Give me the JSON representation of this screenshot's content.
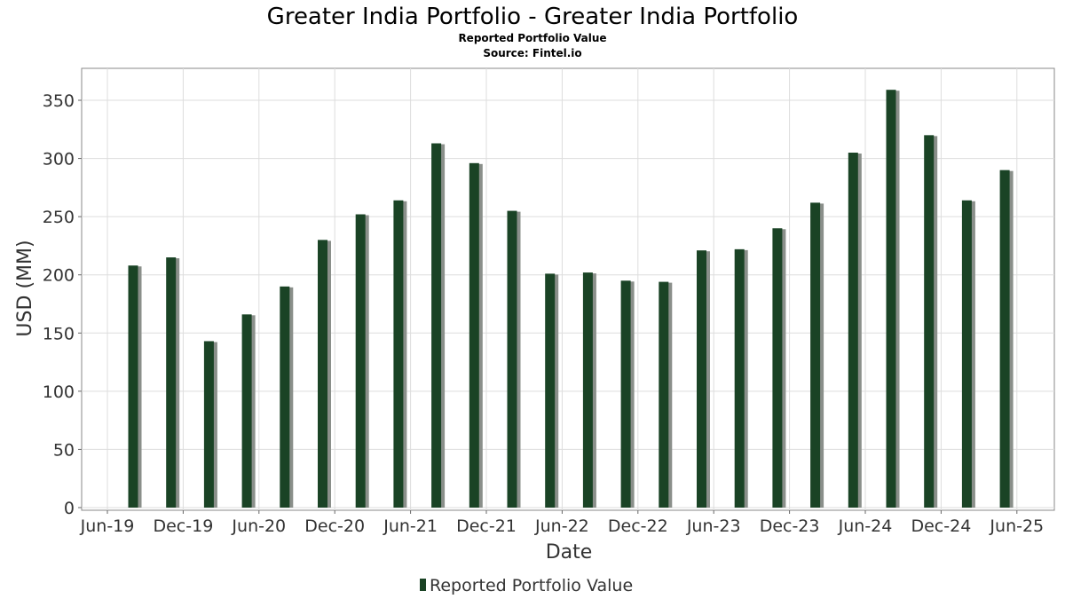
{
  "chart_data": {
    "type": "bar",
    "title": "Greater India Portfolio - Greater India Portfolio",
    "subtitle": "Reported Portfolio Value",
    "source": "Source: Fintel.io",
    "xlabel": "Date",
    "ylabel": "USD (MM)",
    "ylim": [
      0,
      370
    ],
    "yticks": [
      0,
      50,
      100,
      150,
      200,
      250,
      300,
      350
    ],
    "x_tick_labels": [
      "Jun-19",
      "Dec-19",
      "Jun-20",
      "Dec-20",
      "Jun-21",
      "Dec-21",
      "Jun-22",
      "Dec-22",
      "Jun-23",
      "Dec-23",
      "Jun-24",
      "Dec-24",
      "Jun-25"
    ],
    "grid": true,
    "legend_position": "bottom-center",
    "series": [
      {
        "name": "Reported Portfolio Value",
        "color": "#1a4325",
        "values": [
          208,
          215,
          143,
          166,
          190,
          230,
          252,
          264,
          313,
          296,
          255,
          201,
          202,
          195,
          194,
          221,
          222,
          240,
          262,
          305,
          359,
          320,
          264,
          290
        ]
      }
    ]
  }
}
